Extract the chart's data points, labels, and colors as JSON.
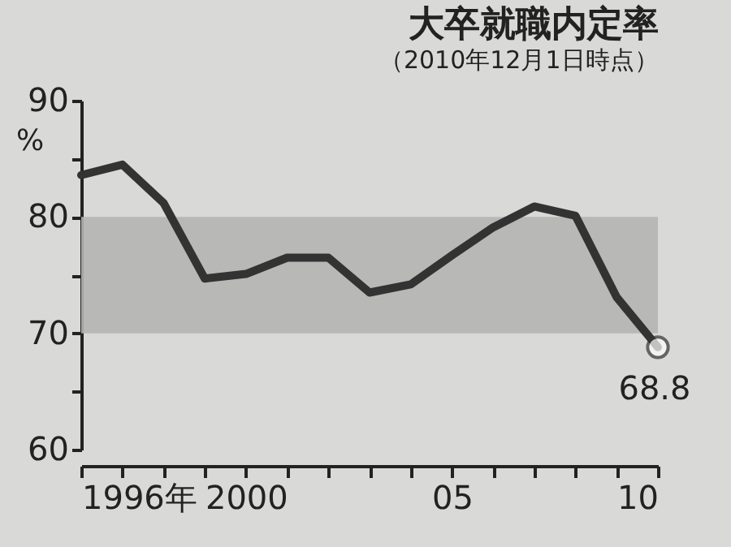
{
  "chart_data": {
    "type": "line",
    "title": "大卒就職内定率",
    "subtitle": "（2010年12月1日時点）",
    "ylabel": "%",
    "x": [
      1996,
      1997,
      1998,
      1999,
      2000,
      2001,
      2002,
      2003,
      2004,
      2005,
      2006,
      2007,
      2008,
      2009,
      2010
    ],
    "series": [
      {
        "color": "#333333",
        "values": [
          83.6,
          84.5,
          81.2,
          74.7,
          75.1,
          76.5,
          76.5,
          73.5,
          74.2,
          76.7,
          79.1,
          80.9,
          80.1,
          73.1,
          68.8
        ]
      }
    ],
    "xlim": [
      1996,
      2010
    ],
    "xticks": [
      {
        "value": 1996,
        "label": "1996年"
      },
      {
        "value": 1997,
        "label": null
      },
      {
        "value": 1998,
        "label": null
      },
      {
        "value": 1999,
        "label": null
      },
      2000,
      {
        "value": 2001,
        "label": null
      },
      {
        "value": 2002,
        "label": null
      },
      {
        "value": 2003,
        "label": null
      },
      {
        "value": 2004,
        "label": null
      },
      {
        "value": 2005,
        "label": "05"
      },
      {
        "value": 2006,
        "label": null
      },
      {
        "value": 2007,
        "label": null
      },
      {
        "value": 2008,
        "label": null
      },
      {
        "value": 2009,
        "label": null
      },
      {
        "value": 2010,
        "label": "10"
      }
    ],
    "ylim": [
      60,
      90
    ],
    "yticks": [
      60,
      {
        "value": 65,
        "label": null
      },
      70,
      {
        "value": 75,
        "label": null
      },
      80,
      {
        "value": 85,
        "label": null
      },
      90
    ],
    "bands": [
      {
        "axis": "y",
        "from": 70,
        "to": 80,
        "color": "#b4b4b4"
      }
    ],
    "annotations": [
      {
        "text": "68.8",
        "x": 2010,
        "y": 68.8
      }
    ],
    "grid": false,
    "legend": false,
    "marker": "none",
    "line_style": "solid"
  }
}
